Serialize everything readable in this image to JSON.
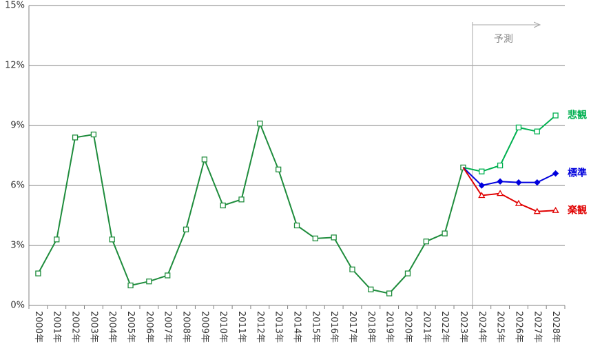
{
  "chart_data": {
    "type": "line",
    "categories": [
      "2000年",
      "2001年",
      "2002年",
      "2003年",
      "2004年",
      "2005年",
      "2006年",
      "2007年",
      "2008年",
      "2009年",
      "2010年",
      "2011年",
      "2012年",
      "2013年",
      "2014年",
      "2015年",
      "2016年",
      "2017年",
      "2018年",
      "2019年",
      "2020年",
      "2021年",
      "2022年",
      "2023年",
      "2024年",
      "2025年",
      "2026年",
      "2027年",
      "2028年"
    ],
    "series": [
      {
        "color": "#1e8c3c",
        "marker": "square",
        "values": [
          1.6,
          3.3,
          8.4,
          8.55,
          3.3,
          1.0,
          1.2,
          1.5,
          3.8,
          7.3,
          5.0,
          5.3,
          9.1,
          6.8,
          4.0,
          3.35,
          3.4,
          1.8,
          0.8,
          0.6,
          1.6,
          3.2,
          3.6,
          6.9,
          null,
          null,
          null,
          null,
          null
        ]
      },
      {
        "name": "悲観",
        "color": "#00b050",
        "marker": "square",
        "values": [
          null,
          null,
          null,
          null,
          null,
          null,
          null,
          null,
          null,
          null,
          null,
          null,
          null,
          null,
          null,
          null,
          null,
          null,
          null,
          null,
          null,
          null,
          null,
          6.9,
          6.7,
          7.0,
          8.9,
          8.7,
          9.5
        ]
      },
      {
        "name": "標準",
        "color": "#0000dd",
        "marker": "diamond",
        "values": [
          null,
          null,
          null,
          null,
          null,
          null,
          null,
          null,
          null,
          null,
          null,
          null,
          null,
          null,
          null,
          null,
          null,
          null,
          null,
          null,
          null,
          null,
          null,
          6.9,
          6.0,
          6.2,
          6.15,
          6.15,
          6.6
        ]
      },
      {
        "name": "楽観",
        "color": "#e00000",
        "marker": "triangle",
        "values": [
          null,
          null,
          null,
          null,
          null,
          null,
          null,
          null,
          null,
          null,
          null,
          null,
          null,
          null,
          null,
          null,
          null,
          null,
          null,
          null,
          null,
          null,
          null,
          6.9,
          5.5,
          5.6,
          5.1,
          4.7,
          4.75
        ]
      }
    ],
    "annotation": "予測",
    "ylim": [
      0,
      15
    ],
    "yticks": [
      {
        "value": 0,
        "label": "0%"
      },
      {
        "value": 3,
        "label": "3%"
      },
      {
        "value": 6,
        "label": "6%"
      },
      {
        "value": 9,
        "label": "9%"
      },
      {
        "value": 12,
        "label": "12%"
      },
      {
        "value": 15,
        "label": "15%"
      }
    ],
    "grid": true
  }
}
